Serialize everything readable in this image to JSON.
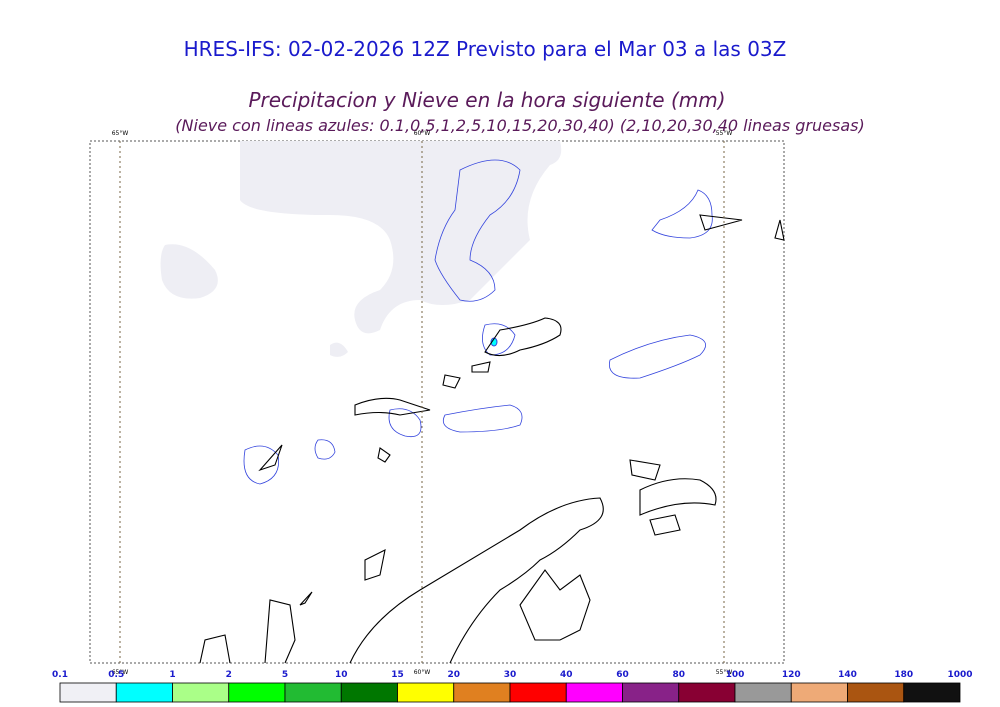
{
  "header": {
    "title": "HRES-IFS: 02-02-2026 12Z Previsto para el Mar 03 a las 03Z",
    "subtitle": "Precipitacion y Nieve en la hora siguiente (mm)",
    "note": "(Nieve con lineas azules: 0.1,0,5,1,2,5,10,15,20,30,40)  (2,10,20,30,40 lineas gruesas)"
  },
  "map": {
    "meridians": [
      "65°W",
      "60°W",
      "55°W"
    ]
  },
  "colorbar": {
    "labels": [
      "0.1",
      "0.5",
      "1",
      "2",
      "5",
      "10",
      "15",
      "20",
      "30",
      "40",
      "60",
      "80",
      "100",
      "120",
      "140",
      "180",
      "1000"
    ],
    "colors": [
      "#f0f0f5",
      "#00ffff",
      "#aaff88",
      "#00ff00",
      "#22bb33",
      "#007700",
      "#ffff00",
      "#e08020",
      "#ff0000",
      "#ff00ff",
      "#882288",
      "#880033",
      "#999999",
      "#eeaa77",
      "#aa5511",
      "#111111"
    ]
  }
}
